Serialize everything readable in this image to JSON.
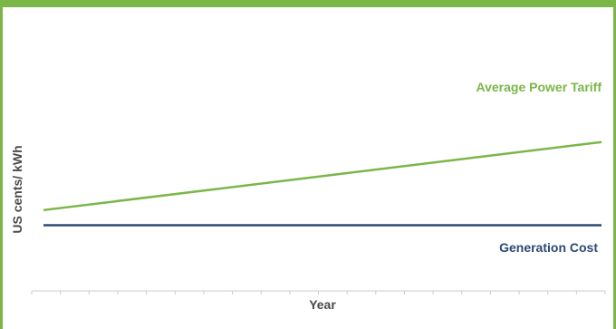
{
  "chart_data": {
    "type": "line",
    "title": "",
    "xlabel": "Year",
    "ylabel": "US cents/ kWh",
    "grid": false,
    "x": [
      0,
      1
    ],
    "ylim": [
      0,
      10
    ],
    "series": [
      {
        "name": "Average Power Tariff",
        "values": [
          3.1,
          5.8
        ],
        "color": "#7ab648"
      },
      {
        "name": "Generation Cost",
        "values": [
          2.5,
          2.5
        ],
        "color": "#2c4a73"
      }
    ]
  },
  "colors": {
    "accent": "#7ab648",
    "axis": "#cccccc"
  }
}
